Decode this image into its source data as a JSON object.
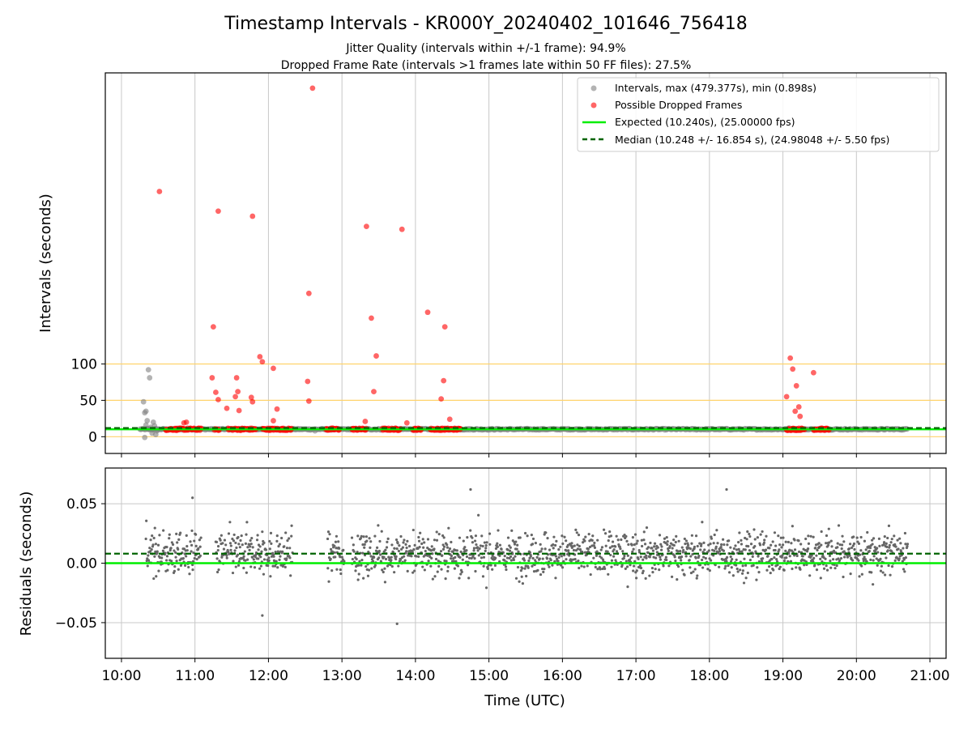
{
  "colors": {
    "intervals": "#808080",
    "dropped": "#ff0000",
    "expected": "#00ee00",
    "median": "#006400",
    "hline": "#ffd36b",
    "grid": "#c8c8c8",
    "residual": "#666666"
  },
  "chart_data": [
    {
      "type": "scatter",
      "title": "Timestamp Intervals - KR000Y_20240402_101646_756418",
      "subtitle_1": "Jitter Quality (intervals within +/-1 frame): 94.9%",
      "subtitle_2": "Dropped Frame Rate (intervals >1 frames late within 50 FF files): 27.5%",
      "xlabel": "",
      "ylabel": "Intervals (seconds)",
      "x_time_range_hours": [
        9.78,
        21.22
      ],
      "ylim": [
        -23,
        500
      ],
      "yticks": [
        0,
        50,
        100
      ],
      "ytick_labels": [
        "0",
        "50",
        "100"
      ],
      "reference_hlines": [
        0,
        50,
        100
      ],
      "expected_value": 10.24,
      "median_value": 10.248,
      "grid": "vertical",
      "legend_position": "top-right",
      "legend": [
        "Intervals, max (479.377s), min (0.898s)",
        "Possible Dropped Frames",
        "Expected (10.240s), (25.00000 fps)",
        "Median (10.248 +/- 16.854 s), (24.98048 +/- 5.50 fps)"
      ],
      "series": [
        {
          "name": "Intervals, max (479.377s), min (0.898s)",
          "points": [
            {
              "t": "10:18",
              "y": 48
            },
            {
              "t": "10:19",
              "y": 33
            },
            {
              "t": "10:20",
              "y": 35
            },
            {
              "t": "10:20",
              "y": 16
            },
            {
              "t": "10:21",
              "y": 22
            },
            {
              "t": "10:22",
              "y": 10
            },
            {
              "t": "10:22",
              "y": 92
            },
            {
              "t": "10:23",
              "y": 81
            },
            {
              "t": "10:24",
              "y": 13
            },
            {
              "t": "10:25",
              "y": 5
            },
            {
              "t": "10:26",
              "y": 20
            },
            {
              "t": "10:27",
              "y": 15
            },
            {
              "t": "10:28",
              "y": 3
            },
            {
              "t": "10:19",
              "y": -1
            },
            {
              "t": "10:29",
              "y": 8
            },
            {
              "t": "12:38",
              "y": 8
            },
            {
              "t": "19:05",
              "y": 12
            }
          ],
          "baseline_band_y": 10.24,
          "baseline_band_time_range": [
            "10:15",
            "20:42"
          ]
        },
        {
          "name": "Possible Dropped Frames",
          "points": [
            {
              "t": "10:31",
              "y": 337
            },
            {
              "t": "11:19",
              "y": 310
            },
            {
              "t": "11:47",
              "y": 303
            },
            {
              "t": "12:36",
              "y": 479
            },
            {
              "t": "13:20",
              "y": 289
            },
            {
              "t": "13:49",
              "y": 285
            },
            {
              "t": "12:33",
              "y": 197
            },
            {
              "t": "11:15",
              "y": 151
            },
            {
              "t": "13:24",
              "y": 163
            },
            {
              "t": "14:10",
              "y": 171
            },
            {
              "t": "14:24",
              "y": 151
            },
            {
              "t": "11:53",
              "y": 110
            },
            {
              "t": "11:55",
              "y": 103
            },
            {
              "t": "12:04",
              "y": 94
            },
            {
              "t": "13:28",
              "y": 111
            },
            {
              "t": "11:14",
              "y": 81
            },
            {
              "t": "11:34",
              "y": 81
            },
            {
              "t": "12:32",
              "y": 76
            },
            {
              "t": "14:23",
              "y": 77
            },
            {
              "t": "11:17",
              "y": 61
            },
            {
              "t": "11:35",
              "y": 62
            },
            {
              "t": "13:26",
              "y": 62
            },
            {
              "t": "11:19",
              "y": 51
            },
            {
              "t": "11:33",
              "y": 55
            },
            {
              "t": "11:46",
              "y": 54
            },
            {
              "t": "11:47",
              "y": 48
            },
            {
              "t": "12:33",
              "y": 49
            },
            {
              "t": "14:21",
              "y": 52
            },
            {
              "t": "11:26",
              "y": 39
            },
            {
              "t": "11:36",
              "y": 36
            },
            {
              "t": "12:07",
              "y": 38
            },
            {
              "t": "12:04",
              "y": 22
            },
            {
              "t": "13:19",
              "y": 21
            },
            {
              "t": "13:53",
              "y": 19
            },
            {
              "t": "14:28",
              "y": 24
            },
            {
              "t": "10:51",
              "y": 19
            },
            {
              "t": "10:53",
              "y": 20
            },
            {
              "t": "19:06",
              "y": 108
            },
            {
              "t": "19:08",
              "y": 93
            },
            {
              "t": "19:11",
              "y": 70
            },
            {
              "t": "19:25",
              "y": 88
            },
            {
              "t": "19:03",
              "y": 55
            },
            {
              "t": "19:13",
              "y": 41
            },
            {
              "t": "19:10",
              "y": 35
            },
            {
              "t": "19:14",
              "y": 28
            }
          ],
          "dense_segments_near_y": 10.24,
          "dense_segments": [
            [
              "10:36",
              "11:05"
            ],
            [
              "11:16",
              "11:20"
            ],
            [
              "11:27",
              "11:50"
            ],
            [
              "11:55",
              "12:19"
            ],
            [
              "12:47",
              "12:58"
            ],
            [
              "13:08",
              "13:20"
            ],
            [
              "13:33",
              "13:48"
            ],
            [
              "13:58",
              "14:05"
            ],
            [
              "14:12",
              "14:37"
            ],
            [
              "19:03",
              "19:18"
            ],
            [
              "19:25",
              "19:38"
            ]
          ]
        },
        {
          "name": "Expected (10.240s), (25.00000 fps)",
          "y": 10.24
        },
        {
          "name": "Median (10.248 +/- 16.854 s), (24.98048 +/- 5.50 fps)",
          "y": 10.248
        }
      ]
    },
    {
      "type": "scatter",
      "xlabel": "Time (UTC)",
      "ylabel": "Residuals (seconds)",
      "xlim_hours": [
        9.78,
        21.22
      ],
      "xticks": [
        "10:00",
        "11:00",
        "12:00",
        "13:00",
        "14:00",
        "15:00",
        "16:00",
        "17:00",
        "18:00",
        "19:00",
        "20:00",
        "21:00"
      ],
      "ylim": [
        -0.08,
        0.08
      ],
      "yticks": [
        -0.05,
        0.0,
        0.05
      ],
      "ytick_labels": [
        "−0.05",
        "0.00",
        "0.05"
      ],
      "grid": true,
      "expected_residual": 0.0,
      "median_residual": 0.008,
      "residual_time_range": [
        "10:20",
        "20:42"
      ],
      "residual_typical_range": [
        -0.03,
        0.045
      ],
      "residual_extremes": [
        {
          "t": "10:58",
          "y": 0.055
        },
        {
          "t": "14:45",
          "y": 0.062
        },
        {
          "t": "18:14",
          "y": 0.062
        },
        {
          "t": "13:45",
          "y": -0.051
        },
        {
          "t": "11:55",
          "y": -0.044
        }
      ],
      "residual_gaps": [
        [
          "11:05",
          "11:17"
        ],
        [
          "12:20",
          "12:48"
        ],
        [
          "13:02",
          "13:08"
        ]
      ]
    }
  ]
}
